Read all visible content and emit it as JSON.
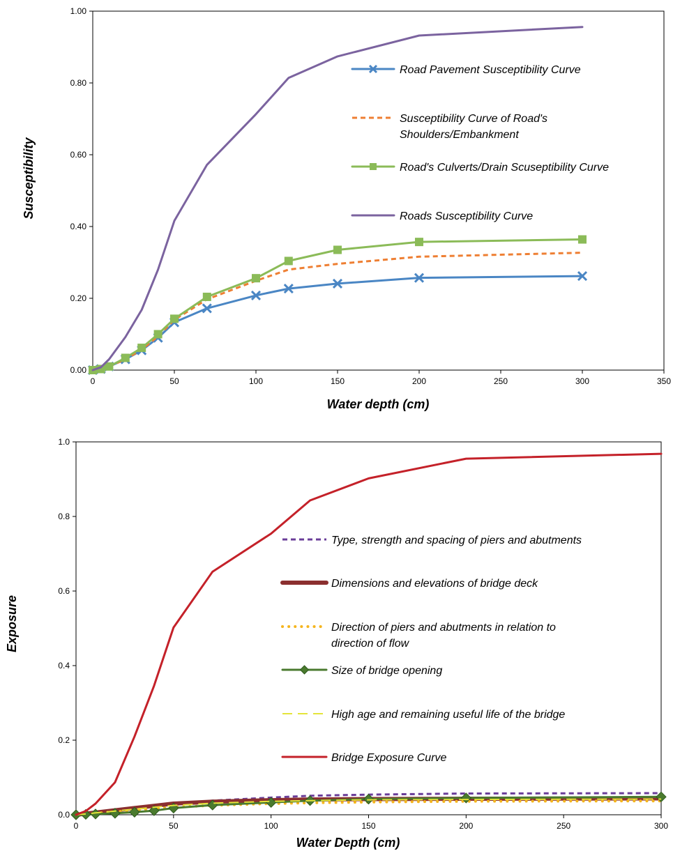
{
  "chart_data": [
    {
      "type": "line",
      "ylabel": "Susceptibility",
      "xlabel": "Water depth (cm)",
      "xlim": [
        0,
        350
      ],
      "ylim": [
        0,
        1
      ],
      "x_ticks": [
        "0",
        "50",
        "100",
        "150",
        "200",
        "250",
        "300",
        "350"
      ],
      "y_ticks": [
        "0.00",
        "0.20",
        "0.40",
        "0.60",
        "0.80",
        "1.00"
      ],
      "grid": false,
      "legend_position": "right",
      "series": [
        {
          "name": "Road Pavement Susceptibility Curve",
          "color": "#4a86c4",
          "style": "solid",
          "marker": "x",
          "x": [
            0,
            5,
            10,
            20,
            30,
            40,
            50,
            70,
            100,
            120,
            150,
            200,
            300
          ],
          "y": [
            0,
            0.003,
            0.01,
            0.03,
            0.055,
            0.09,
            0.133,
            0.172,
            0.208,
            0.227,
            0.241,
            0.257,
            0.262
          ]
        },
        {
          "name": "Susceptibility Curve of Road's Shoulders/Embankment",
          "color": "#ee7f33",
          "style": "dashed",
          "marker": "none",
          "x": [
            0,
            5,
            10,
            20,
            30,
            40,
            50,
            70,
            100,
            120,
            150,
            200,
            300
          ],
          "y": [
            0,
            0.003,
            0.01,
            0.03,
            0.057,
            0.094,
            0.14,
            0.197,
            0.249,
            0.28,
            0.296,
            0.316,
            0.327
          ]
        },
        {
          "name": "Road's Culverts/Drain Scuseptibility Curve",
          "color": "#8bbb58",
          "style": "solid",
          "marker": "square",
          "x": [
            0,
            5,
            10,
            20,
            30,
            40,
            50,
            70,
            100,
            120,
            150,
            200,
            300
          ],
          "y": [
            0,
            0.003,
            0.01,
            0.034,
            0.062,
            0.1,
            0.143,
            0.204,
            0.256,
            0.304,
            0.335,
            0.357,
            0.364
          ]
        },
        {
          "name": "Roads Susceptibility Curve",
          "color": "#7b639f",
          "style": "solid",
          "marker": "none",
          "x": [
            0,
            5,
            10,
            20,
            30,
            40,
            50,
            70,
            100,
            120,
            150,
            200,
            300
          ],
          "y": [
            0,
            0.008,
            0.03,
            0.092,
            0.168,
            0.28,
            0.416,
            0.572,
            0.713,
            0.814,
            0.874,
            0.932,
            0.956
          ]
        }
      ]
    },
    {
      "type": "line",
      "ylabel": "Exposure",
      "xlabel": "Water Depth (cm)",
      "xlim": [
        0,
        300
      ],
      "ylim": [
        0,
        1
      ],
      "x_ticks": [
        "0",
        "50",
        "100",
        "150",
        "200",
        "250",
        "300"
      ],
      "y_ticks": [
        "0.0",
        "0.2",
        "0.4",
        "0.6",
        "0.8",
        "1.0"
      ],
      "grid": false,
      "legend_position": "right",
      "series": [
        {
          "name": "Type, strength and spacing of piers and abutments",
          "color": "#6a3d99",
          "style": "dashed",
          "marker": "none",
          "x": [
            0,
            5,
            10,
            20,
            30,
            40,
            50,
            70,
            100,
            120,
            150,
            200,
            300
          ],
          "y": [
            0,
            0.003,
            0.006,
            0.012,
            0.018,
            0.024,
            0.03,
            0.038,
            0.046,
            0.051,
            0.054,
            0.057,
            0.058
          ]
        },
        {
          "name": "Dimensions and elevations of bridge deck",
          "color": "#8b2f2f",
          "style": "thick",
          "marker": "none",
          "x": [
            0,
            5,
            10,
            20,
            30,
            40,
            50,
            70,
            100,
            120,
            150,
            200,
            300
          ],
          "y": [
            0,
            0.003,
            0.006,
            0.012,
            0.018,
            0.024,
            0.03,
            0.035,
            0.039,
            0.041,
            0.042,
            0.043,
            0.044
          ]
        },
        {
          "name": "Direction of piers and abutments in relation to direction of flow",
          "color": "#f5b51e",
          "style": "dotted",
          "marker": "none",
          "x": [
            0,
            5,
            10,
            20,
            30,
            40,
            50,
            70,
            100,
            120,
            150,
            200,
            300
          ],
          "y": [
            0,
            0.002,
            0.004,
            0.008,
            0.012,
            0.016,
            0.02,
            0.025,
            0.03,
            0.032,
            0.034,
            0.036,
            0.037
          ]
        },
        {
          "name": "Size of bridge opening",
          "color": "#4a7a2e",
          "style": "solid",
          "marker": "diamond",
          "x": [
            0,
            5,
            10,
            20,
            30,
            40,
            50,
            70,
            100,
            120,
            150,
            200,
            300
          ],
          "y": [
            0,
            0.001,
            0.002,
            0.004,
            0.007,
            0.011,
            0.018,
            0.026,
            0.033,
            0.038,
            0.042,
            0.045,
            0.048
          ]
        },
        {
          "name": "High age and remaining useful life of the bridge",
          "color": "#e4e43a",
          "style": "longdash",
          "marker": "none",
          "x": [
            0,
            5,
            10,
            20,
            30,
            40,
            50,
            70,
            100,
            120,
            150,
            200,
            300
          ],
          "y": [
            0,
            0.002,
            0.005,
            0.01,
            0.015,
            0.02,
            0.025,
            0.031,
            0.036,
            0.038,
            0.04,
            0.041,
            0.042
          ]
        },
        {
          "name": "Bridge Exposure Curve",
          "color": "#c42129",
          "style": "solid",
          "marker": "none",
          "x": [
            0,
            5,
            10,
            20,
            30,
            40,
            50,
            70,
            100,
            120,
            150,
            200,
            300
          ],
          "y": [
            0,
            0.01,
            0.03,
            0.087,
            0.21,
            0.346,
            0.502,
            0.652,
            0.754,
            0.843,
            0.902,
            0.955,
            0.968
          ]
        }
      ]
    }
  ]
}
